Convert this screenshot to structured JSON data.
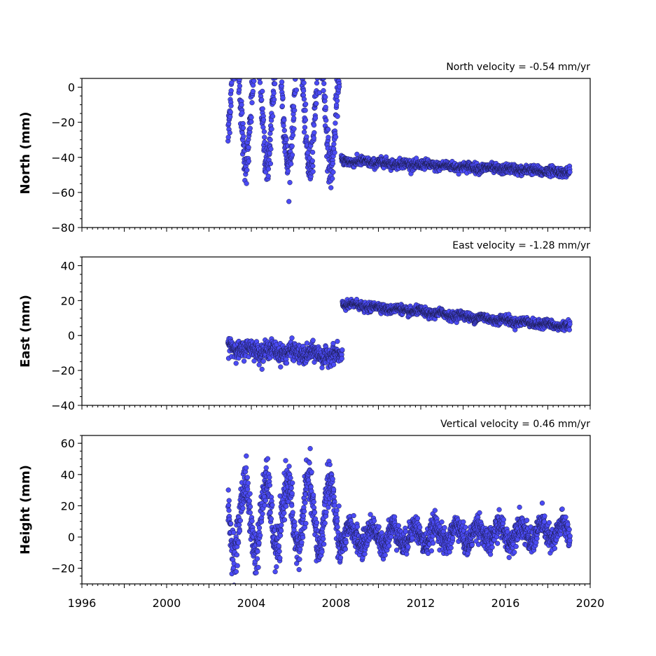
{
  "chart_data": [
    {
      "type": "scatter",
      "ylabel": "North (mm)",
      "annotation": "North velocity = -0.54 mm/yr",
      "ylim": [
        -80,
        5
      ],
      "xlim": [
        1996,
        2020
      ],
      "yticks": [
        {
          "value": 0,
          "label": "0"
        },
        {
          "value": -20,
          "label": "−20"
        },
        {
          "value": -40,
          "label": "−40"
        },
        {
          "value": -60,
          "label": "−60"
        },
        {
          "value": -80,
          "label": "−80"
        }
      ],
      "segments": [
        {
          "x_start": 2002.9,
          "x_end": 2008.2,
          "trend_start": -10,
          "trend_end": -15,
          "amplitude": 32,
          "period": 1.0,
          "phase": 0.0,
          "noise": 6
        },
        {
          "x_start": 2008.25,
          "x_end": 2019.05,
          "trend_start": -42,
          "trend_end": -48.5,
          "amplitude": 0.5,
          "period": 1.0,
          "phase": 0.0,
          "noise": 1.3
        }
      ],
      "color": "#4b4bf5"
    },
    {
      "type": "scatter",
      "ylabel": "East (mm)",
      "annotation": "East velocity = -1.28 mm/yr",
      "ylim": [
        -40,
        45
      ],
      "xlim": [
        1996,
        2020
      ],
      "yticks": [
        {
          "value": 40,
          "label": "40"
        },
        {
          "value": 20,
          "label": "20"
        },
        {
          "value": 0,
          "label": "0"
        },
        {
          "value": -20,
          "label": "−20"
        },
        {
          "value": -40,
          "label": "−40"
        }
      ],
      "segments": [
        {
          "x_start": 2002.9,
          "x_end": 2008.3,
          "trend_start": -7,
          "trend_end": -12,
          "amplitude": 1.5,
          "period": 1.0,
          "phase": 0.3,
          "noise": 2.5
        },
        {
          "x_start": 2008.3,
          "x_end": 2019.05,
          "trend_start": 18,
          "trend_end": 5,
          "amplitude": 0.8,
          "period": 1.0,
          "phase": 0.3,
          "noise": 1.2
        }
      ],
      "color": "#4b4bf5"
    },
    {
      "type": "scatter",
      "ylabel": "Height (mm)",
      "annotation": "Vertical velocity = 0.46 mm/yr",
      "ylim": [
        -30,
        65
      ],
      "xlim": [
        1996,
        2020
      ],
      "yticks": [
        {
          "value": 60,
          "label": "60"
        },
        {
          "value": 40,
          "label": "40"
        },
        {
          "value": 20,
          "label": "20"
        },
        {
          "value": 0,
          "label": "0"
        },
        {
          "value": -20,
          "label": "−20"
        }
      ],
      "segments": [
        {
          "x_start": 2002.9,
          "x_end": 2008.2,
          "trend_start": 12,
          "trend_end": 15,
          "amplitude": 22,
          "period": 1.0,
          "phase": 0.55,
          "noise": 7
        },
        {
          "x_start": 2008.2,
          "x_end": 2019.05,
          "trend_start": 0,
          "trend_end": 3,
          "amplitude": 6,
          "period": 1.0,
          "phase": 0.55,
          "noise": 4
        }
      ],
      "color": "#4b4bf5"
    }
  ],
  "xaxis": {
    "ticks": [
      {
        "value": 1996,
        "label": "1996"
      },
      {
        "value": 2000,
        "label": "2000"
      },
      {
        "value": 2004,
        "label": "2004"
      },
      {
        "value": 2008,
        "label": "2008"
      },
      {
        "value": 2012,
        "label": "2012"
      },
      {
        "value": 2016,
        "label": "2016"
      },
      {
        "value": 2020,
        "label": "2020"
      }
    ]
  }
}
